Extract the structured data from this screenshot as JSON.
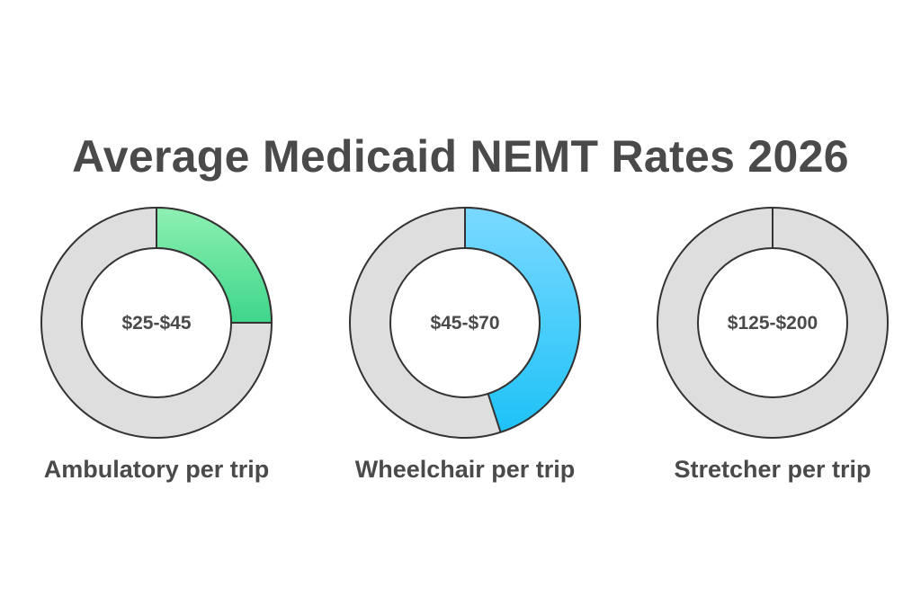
{
  "title": "Average Medicaid NEMT Rates 2026",
  "colors": {
    "track": "#dedede",
    "outline": "#333333",
    "text": "#4a4a4a"
  },
  "chart_data": {
    "type": "pie",
    "title": "Average Medicaid NEMT Rates 2026",
    "categories": [
      "Ambulatory per trip",
      "Wheelchair per trip",
      "Stretcher per trip"
    ],
    "center_labels": [
      "$25-$45",
      "$45-$70",
      "$125-$200"
    ],
    "filled_fraction": [
      0.25,
      0.45,
      0.0
    ],
    "fill_colors": [
      [
        "#8ef0b2",
        "#3ed68a"
      ],
      [
        "#7ad9ff",
        "#1ec2f7"
      ],
      [
        "#dedede",
        "#dedede"
      ]
    ]
  }
}
